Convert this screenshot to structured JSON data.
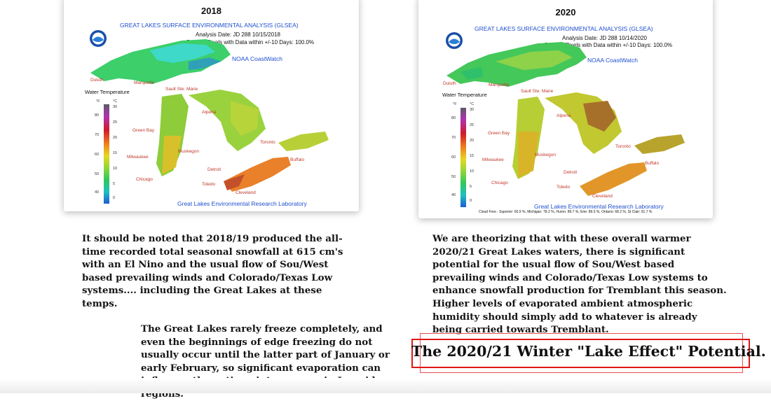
{
  "maps": [
    {
      "year": "2018",
      "title": "GREAT LAKES SURFACE ENVIRONMENTAL ANALYSIS (GLSEA)",
      "analysis_date": "Analysis Date:  JD 288 10/15/2018",
      "percent_pixels": "Percent Pixels with Data within +/-10 Days: 100.0%",
      "coastwatch": "NOAA CoastWatch",
      "lab": "Great Lakes Environmental Research Laboratory",
      "legend_title": "Water Temperature",
      "legend_units": [
        "°F",
        "°C"
      ],
      "legend_f": [
        "80",
        "70",
        "60",
        "50",
        "40"
      ],
      "legend_c": [
        "30",
        "25",
        "20",
        "15",
        "10",
        "5",
        "0"
      ],
      "cities": {
        "duluth": "Duluth",
        "marquette": "Marquette",
        "sault": "Sault Ste. Marie",
        "alpena": "Alpena",
        "green_bay": "Green Bay",
        "muskegon": "Muskegon",
        "milwaukee": "Milwaukee",
        "chicago": "Chicago",
        "detroit": "Detroit",
        "toledo": "Toledo",
        "cleveland": "Cleveland",
        "toronto": "Toronto",
        "buffalo": "Buffalo"
      },
      "logo": "noaa-logo"
    },
    {
      "year": "2020",
      "title": "GREAT LAKES SURFACE ENVIRONMENTAL ANALYSIS (GLSEA)",
      "analysis_date": "Analysis Date:  JD 288 10/14/2020",
      "percent_pixels": "Percent Pixels with Data within +/-10 Days: 100.0%",
      "coastwatch": "NOAA CoastWatch",
      "lab": "Great Lakes Environmental Research Laboratory",
      "footer": "Cloud Free - Superior: 60.9 %, Michigan: 78.2 %, Huron: 89.7 %, Erie: 89.5 %, Ontario: 68.2 %, St Clair: 91.7 %",
      "legend_title": "Water Temperature",
      "legend_units": [
        "°F",
        "°C"
      ],
      "legend_f": [
        "80",
        "70",
        "60",
        "50",
        "40"
      ],
      "legend_c": [
        "30",
        "25",
        "20",
        "15",
        "10",
        "5",
        "0"
      ],
      "cities": {
        "duluth": "Duluth",
        "marquette": "Marquette",
        "sault": "Sault Ste. Marie",
        "alpena": "Alpena",
        "green_bay": "Green Bay",
        "muskegon": "Muskegon",
        "milwaukee": "Milwaukee",
        "chicago": "Chicago",
        "detroit": "Detroit",
        "toledo": "Toledo",
        "cleveland": "Cleveland",
        "toronto": "Toronto",
        "buffalo": "Buffalo"
      },
      "logo": "noaa-logo"
    }
  ],
  "text": {
    "para_2018": "It should be noted that 2018/19 produced the all-time recorded total seasonal snowfall at 615 cm's with an El Nino and the usual flow of Sou/West based prevailing winds and Colorado/Texas Low systems.... including the Great Lakes at these temps.",
    "para_2020": "We are theorizing that with these overall warmer 2020/21 Great Lakes waters, there is significant potential for the usual flow of Sou/West based prevailing winds and Colorado/Texas Low systems to enhance snowfall production for Tremblant this season. Higher levels of evaporated ambient atmospheric humidity should simply add to whatever is already being carried towards Tremblant.",
    "para_freeze": "The Great Lakes rarely freeze completely, and even the beginnings of edge freezing do not usually occur until the latter part of January or early February, so significant evaporation can influence the entire winter season in Lee-side regions.",
    "headline": "The 2020/21 Winter \"Lake Effect\" Potential."
  },
  "colors": {
    "headline_border": "#e01616",
    "map_title": "#1f4fd0",
    "city_label": "#c0392b"
  }
}
